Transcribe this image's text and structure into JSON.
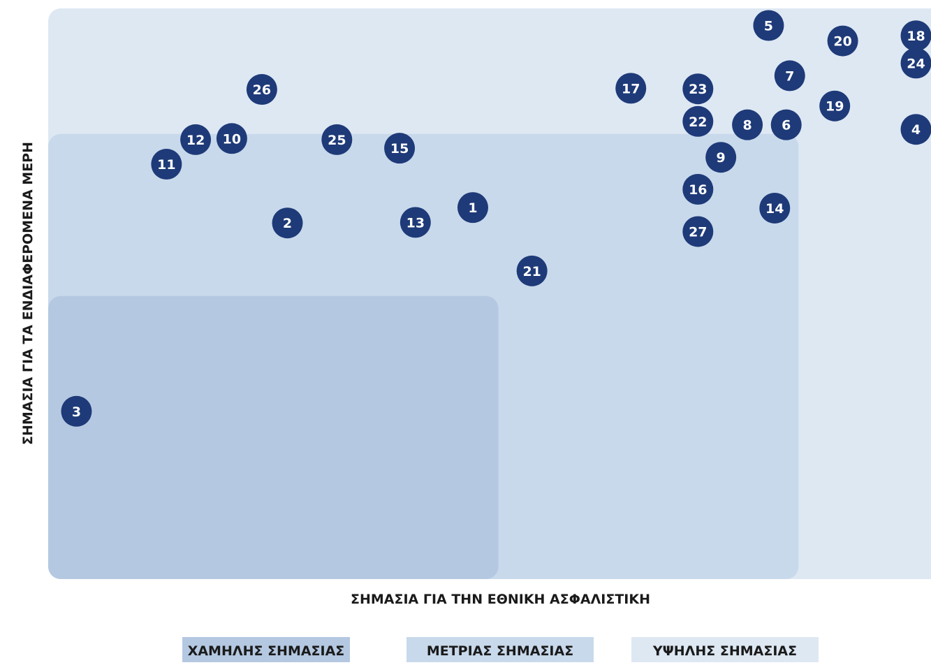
{
  "chart_data": {
    "type": "scatter",
    "xlabel": "ΣΗΜΑΣΙΑ ΓΙΑ ΤΗΝ ΕΘΝΙΚΗ ΑΣΦΑΛΙΣΤΙΚΗ",
    "ylabel": "ΣΗΜΑΣΙΑ ΓΙΑ ΤΑ ΕΝΔΙΑΦΕΡΟΜΕΝΑ ΜΕΡΗ",
    "xlim": [
      0,
      100
    ],
    "ylim": [
      0,
      100
    ],
    "grid": false,
    "legend": [
      {
        "label": "ΧΑΜΗΛΗΣ ΣΗΜΑΣΙΑΣ",
        "color": "#b4c8e1"
      },
      {
        "label": "ΜΕΤΡΙΑΣ ΣΗΜΑΣΙΑΣ",
        "color": "#c8d9eb"
      },
      {
        "label": "ΥΨΗΛΗΣ ΣΗΜΑΣΙΑΣ",
        "color": "#dee8f3"
      }
    ],
    "zones": [
      {
        "level": "high",
        "x": [
          0,
          100
        ],
        "y": [
          0,
          100
        ],
        "color": "#dee8f3"
      },
      {
        "level": "medium",
        "x": [
          0,
          85
        ],
        "y": [
          0,
          78
        ],
        "color": "#c8d9eb"
      },
      {
        "level": "low",
        "x": [
          0,
          51
        ],
        "y": [
          0,
          49.6
        ],
        "color": "#b4c8e1"
      }
    ],
    "marker_color": "#1e3a78",
    "points": [
      {
        "id": "1",
        "x": 48.1,
        "y": 65.1
      },
      {
        "id": "2",
        "x": 27.1,
        "y": 62.4
      },
      {
        "id": "3",
        "x": 3.2,
        "y": 29.4
      },
      {
        "id": "4",
        "x": 98.3,
        "y": 78.8
      },
      {
        "id": "5",
        "x": 81.6,
        "y": 97.0
      },
      {
        "id": "6",
        "x": 83.6,
        "y": 79.6
      },
      {
        "id": "7",
        "x": 84.0,
        "y": 88.2
      },
      {
        "id": "8",
        "x": 79.2,
        "y": 79.6
      },
      {
        "id": "9",
        "x": 76.2,
        "y": 73.9
      },
      {
        "id": "10",
        "x": 20.8,
        "y": 77.2
      },
      {
        "id": "11",
        "x": 13.4,
        "y": 72.7
      },
      {
        "id": "12",
        "x": 16.7,
        "y": 77.0
      },
      {
        "id": "13",
        "x": 41.6,
        "y": 62.5
      },
      {
        "id": "14",
        "x": 82.3,
        "y": 65.0
      },
      {
        "id": "15",
        "x": 39.8,
        "y": 75.5
      },
      {
        "id": "16",
        "x": 73.6,
        "y": 68.3
      },
      {
        "id": "17",
        "x": 66.0,
        "y": 86.0
      },
      {
        "id": "18",
        "x": 98.3,
        "y": 95.2
      },
      {
        "id": "19",
        "x": 89.1,
        "y": 82.9
      },
      {
        "id": "20",
        "x": 90.0,
        "y": 94.3
      },
      {
        "id": "21",
        "x": 54.8,
        "y": 54.0
      },
      {
        "id": "22",
        "x": 73.6,
        "y": 80.2
      },
      {
        "id": "23",
        "x": 73.6,
        "y": 85.9
      },
      {
        "id": "24",
        "x": 98.3,
        "y": 90.4
      },
      {
        "id": "25",
        "x": 32.7,
        "y": 77.0
      },
      {
        "id": "26",
        "x": 24.2,
        "y": 85.8
      },
      {
        "id": "27",
        "x": 73.6,
        "y": 60.9
      }
    ]
  }
}
